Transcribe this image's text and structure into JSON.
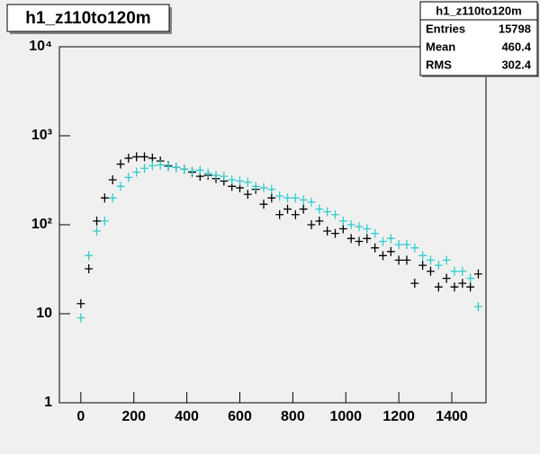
{
  "chart_data": {
    "type": "errorpoints",
    "title": "h1_z110to120m",
    "x": [
      0,
      30,
      60,
      90,
      120,
      150,
      180,
      210,
      240,
      270,
      300,
      330,
      360,
      390,
      420,
      450,
      480,
      510,
      540,
      570,
      600,
      630,
      660,
      690,
      720,
      750,
      780,
      810,
      840,
      870,
      900,
      930,
      960,
      990,
      1020,
      1050,
      1080,
      1110,
      1140,
      1170,
      1200,
      1230,
      1260,
      1290,
      1320,
      1350,
      1380,
      1410,
      1440,
      1470,
      1500
    ],
    "series": [
      {
        "color": "#000000",
        "values": [
          13,
          32,
          110,
          200,
          320,
          480,
          560,
          580,
          580,
          560,
          520,
          460,
          440,
          420,
          390,
          350,
          360,
          330,
          310,
          270,
          260,
          220,
          250,
          170,
          200,
          130,
          150,
          130,
          150,
          100,
          110,
          85,
          80,
          90,
          70,
          65,
          70,
          55,
          45,
          50,
          40,
          40,
          22,
          35,
          30,
          20,
          25,
          20,
          22,
          20,
          28
        ]
      },
      {
        "color": "#33cccc",
        "values": [
          9,
          45,
          85,
          110,
          200,
          270,
          340,
          390,
          430,
          460,
          470,
          450,
          440,
          420,
          400,
          410,
          380,
          360,
          350,
          320,
          310,
          300,
          270,
          260,
          250,
          210,
          200,
          200,
          190,
          180,
          150,
          140,
          130,
          110,
          100,
          95,
          90,
          80,
          65,
          70,
          60,
          60,
          55,
          45,
          40,
          35,
          40,
          30,
          30,
          25,
          12
        ]
      }
    ],
    "xlim": [
      -81,
      1529
    ],
    "ylim": [
      1,
      10000
    ],
    "log_y": true,
    "xticks": [
      0,
      200,
      400,
      600,
      800,
      1000,
      1200,
      1400
    ],
    "yticks": [
      1,
      10,
      {
        "value": 100,
        "label": "10²"
      },
      {
        "value": 1000,
        "label": "10³"
      },
      {
        "value": 10000,
        "label": "10⁴"
      }
    ],
    "stats": {
      "entries_label": "Entries",
      "entries": 15798,
      "mean_label": "Mean",
      "mean": 460.4,
      "rms_label": "RMS",
      "rms": 302.4
    }
  }
}
